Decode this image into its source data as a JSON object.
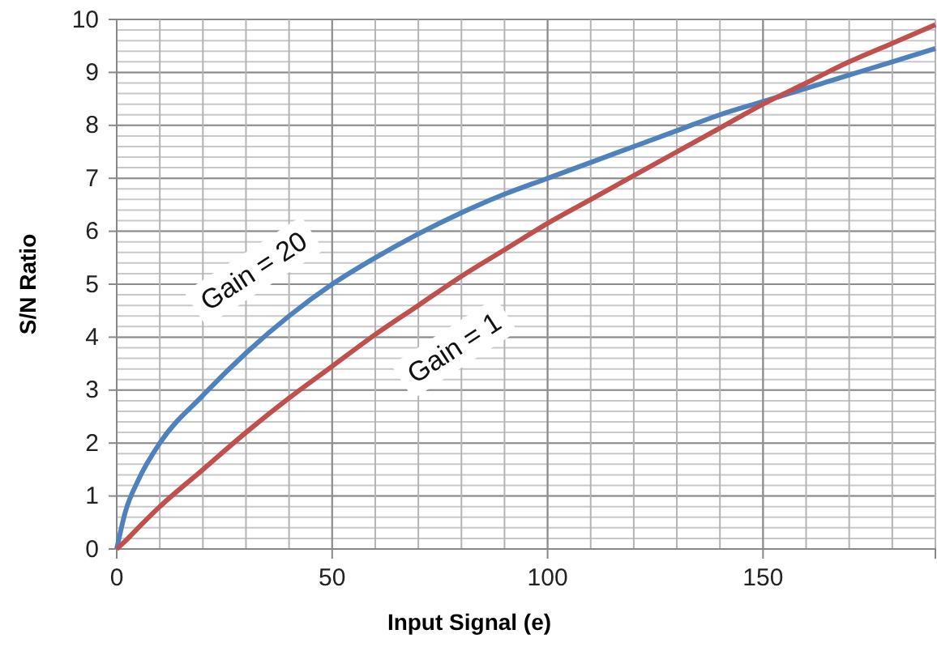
{
  "chart_data": {
    "type": "line",
    "xlabel": "Input Signal (e)",
    "ylabel": "S/N Ratio",
    "x": [
      0,
      2,
      5,
      10,
      20,
      30,
      40,
      50,
      60,
      70,
      80,
      90,
      100,
      110,
      120,
      130,
      140,
      150,
      160,
      170,
      180,
      190
    ],
    "series": [
      {
        "name": "Gain = 20",
        "color": "#4f81bd",
        "values": [
          0,
          0.7,
          1.3,
          2.0,
          2.9,
          3.7,
          4.4,
          5.0,
          5.5,
          5.95,
          6.35,
          6.7,
          7.0,
          7.3,
          7.6,
          7.9,
          8.2,
          8.45,
          8.7,
          8.95,
          9.2,
          9.45
        ]
      },
      {
        "name": "Gain = 1",
        "color": "#c0504d",
        "values": [
          0,
          0.15,
          0.4,
          0.8,
          1.5,
          2.2,
          2.85,
          3.45,
          4.05,
          4.6,
          5.15,
          5.65,
          6.15,
          6.6,
          7.05,
          7.5,
          7.95,
          8.4,
          8.8,
          9.2,
          9.55,
          9.9
        ]
      }
    ],
    "xlim": [
      0,
      190
    ],
    "xticks": [
      0,
      50,
      100,
      150
    ],
    "ylim": [
      0,
      10
    ],
    "yticks": [
      0,
      1,
      2,
      3,
      4,
      5,
      6,
      7,
      8,
      9,
      10
    ],
    "grid": true,
    "legend": false,
    "marker": "none",
    "line_style": "solid"
  }
}
